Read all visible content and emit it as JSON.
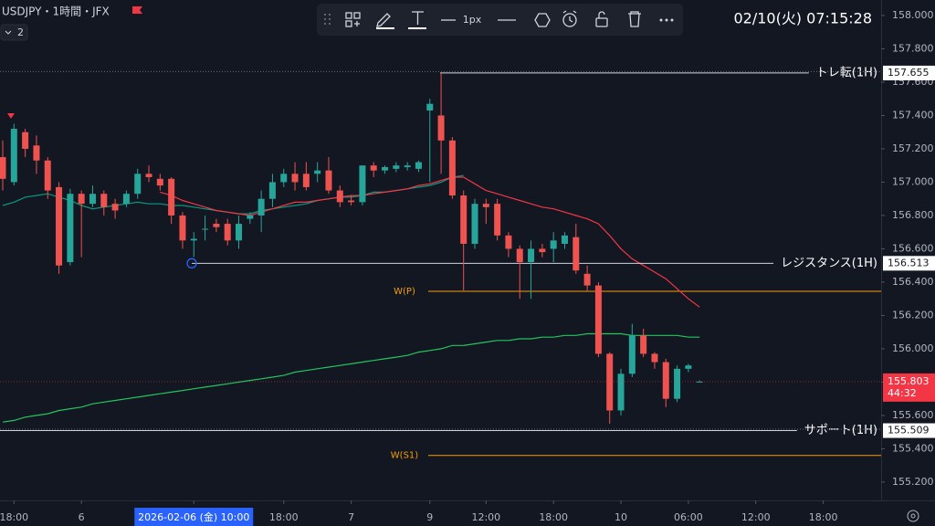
{
  "header": {
    "symbol": "USDJPY・1時間・JFX",
    "pane_count": 2,
    "stroke_width": "1px",
    "clock": "02/10(火)  07:15:28"
  },
  "chart_data": {
    "type": "candlestick",
    "up_color": "#26a69a",
    "down_color": "#ef5350",
    "xlim": [
      -0.244,
      78.15
    ],
    "xticks": [
      {
        "value": 1,
        "label": "18:00"
      },
      {
        "value": 7,
        "label": "6"
      },
      {
        "value": 17,
        "label": "2026-02-06 (金)   10:00"
      },
      {
        "value": 25,
        "label": "18:00"
      },
      {
        "value": 31,
        "label": "7"
      },
      {
        "value": 38,
        "label": "9"
      },
      {
        "value": 43,
        "label": "12:00"
      },
      {
        "value": 49,
        "label": "18:00"
      },
      {
        "value": 55,
        "label": "10"
      },
      {
        "value": 61,
        "label": "06:00"
      },
      {
        "value": 67,
        "label": "12:00"
      },
      {
        "value": 73,
        "label": "18:00"
      }
    ],
    "ylim": [
      155.09,
      158.093
    ],
    "yticks": [
      {
        "value": 158,
        "label": "158.000"
      },
      {
        "value": 157.8,
        "label": "157.800"
      },
      {
        "value": 157.6,
        "label": "157.600"
      },
      {
        "value": 157.4,
        "label": "157.400"
      },
      {
        "value": 157.2,
        "label": "157.200"
      },
      {
        "value": 157,
        "label": "157.000"
      },
      {
        "value": 156.8,
        "label": "156.800"
      },
      {
        "value": 156.6,
        "label": "156.600"
      },
      {
        "value": 156.4,
        "label": "156.400"
      },
      {
        "value": 156.2,
        "label": "156.200"
      },
      {
        "value": 156,
        "label": "156.000"
      },
      {
        "value": 155.8,
        "label": "155.800"
      },
      {
        "value": 155.6,
        "label": "155.600"
      },
      {
        "value": 155.4,
        "label": "155.400"
      },
      {
        "value": 155.2,
        "label": "155.200"
      }
    ],
    "open": [
      157.15,
      157.0,
      157.3,
      157.22,
      157.13,
      156.97,
      156.52,
      156.93,
      156.87,
      156.93,
      156.87,
      156.87,
      156.93,
      157.05,
      157.02,
      157.02,
      156.8,
      156.65,
      156.72,
      156.75,
      156.75,
      156.65,
      156.78,
      156.8,
      156.9,
      157.0,
      157.05,
      157.05,
      157.05,
      157.07,
      156.95,
      156.89,
      156.88,
      157.1,
      157.07,
      157.08,
      157.09,
      157.08,
      157.43,
      157.4,
      157.25,
      156.92,
      156.63,
      156.87,
      156.87,
      156.68,
      156.6,
      156.52,
      156.6,
      156.6,
      156.63,
      156.67,
      156.45,
      156.38,
      155.97,
      155.63,
      155.85,
      156.08,
      155.97,
      155.92,
      155.7,
      155.88,
      155.8
    ],
    "high": [
      157.25,
      157.35,
      157.32,
      157.28,
      157.15,
      157.0,
      156.96,
      156.95,
      156.98,
      156.95,
      156.9,
      156.95,
      157.08,
      157.1,
      157.05,
      157.03,
      156.82,
      156.7,
      156.8,
      156.78,
      156.78,
      156.8,
      156.82,
      156.95,
      157.05,
      157.08,
      157.12,
      157.12,
      157.12,
      157.15,
      156.98,
      156.92,
      157.1,
      157.12,
      157.1,
      157.12,
      157.12,
      157.13,
      157.5,
      157.655,
      157.27,
      156.95,
      156.9,
      156.9,
      156.9,
      156.7,
      156.62,
      156.65,
      156.63,
      156.7,
      156.7,
      156.75,
      156.5,
      156.4,
      155.98,
      155.88,
      156.15,
      156.12,
      155.98,
      155.94,
      155.9,
      155.91,
      155.81
    ],
    "low": [
      156.95,
      156.98,
      157.15,
      157.05,
      156.9,
      156.45,
      156.5,
      156.55,
      156.85,
      156.8,
      156.78,
      156.85,
      156.9,
      157.0,
      156.95,
      156.75,
      156.6,
      156.55,
      156.65,
      156.7,
      156.62,
      156.6,
      156.75,
      156.7,
      156.85,
      156.97,
      156.95,
      156.95,
      157.0,
      156.93,
      156.85,
      156.86,
      156.86,
      157.03,
      157.05,
      157.06,
      157.07,
      157.06,
      157.0,
      157.05,
      156.9,
      156.35,
      156.6,
      156.75,
      156.65,
      156.55,
      156.3,
      156.3,
      156.55,
      156.52,
      156.6,
      156.45,
      156.35,
      155.95,
      155.55,
      155.6,
      155.83,
      155.95,
      155.88,
      155.65,
      155.68,
      155.86,
      155.8
    ],
    "close": [
      157.02,
      157.32,
      157.2,
      157.13,
      156.95,
      156.5,
      156.93,
      156.87,
      156.93,
      156.85,
      156.83,
      156.93,
      157.05,
      157.03,
      156.98,
      156.8,
      156.65,
      156.66,
      156.72,
      156.73,
      156.65,
      156.75,
      156.8,
      156.9,
      157.0,
      157.05,
      157.0,
      156.97,
      157.07,
      156.95,
      156.88,
      156.88,
      157.1,
      157.07,
      157.09,
      157.1,
      157.1,
      157.12,
      157.47,
      157.25,
      156.92,
      156.63,
      156.87,
      156.85,
      156.68,
      156.6,
      156.52,
      156.6,
      156.58,
      156.65,
      156.68,
      156.47,
      156.38,
      155.97,
      155.63,
      155.85,
      156.08,
      155.97,
      155.92,
      155.7,
      155.88,
      155.9,
      155.803
    ],
    "series": [
      {
        "color": "#089981",
        "values": [
          156.86,
          156.88,
          156.91,
          156.92,
          156.93,
          156.91,
          156.89,
          156.86,
          156.84,
          156.85,
          156.86,
          156.87,
          156.88,
          156.87,
          156.87,
          156.86,
          156.86,
          156.85,
          156.84,
          156.83,
          156.82,
          156.81,
          156.81,
          156.83,
          156.84,
          156.85,
          156.86,
          156.87,
          156.89,
          156.9,
          156.91,
          156.91,
          156.92,
          156.94,
          156.94,
          156.95,
          156.96,
          156.97,
          156.98,
          157.0,
          157.03,
          157.04,
          null,
          null,
          null,
          null,
          null,
          null,
          null,
          null,
          null,
          null,
          null,
          null,
          null,
          null,
          null,
          null,
          null,
          null,
          null,
          null,
          null
        ]
      },
      {
        "color": "#f23645",
        "values": [
          null,
          null,
          null,
          null,
          null,
          null,
          null,
          null,
          null,
          null,
          null,
          null,
          null,
          null,
          156.94,
          156.92,
          156.89,
          156.87,
          156.85,
          156.83,
          156.82,
          156.81,
          156.8,
          156.82,
          156.84,
          156.86,
          156.88,
          156.88,
          156.89,
          156.9,
          156.91,
          156.92,
          156.92,
          156.93,
          156.94,
          156.95,
          156.96,
          156.98,
          156.99,
          157.01,
          157.03,
          157.03,
          156.99,
          156.95,
          156.93,
          156.91,
          156.89,
          156.87,
          156.85,
          156.84,
          156.82,
          156.8,
          156.78,
          156.75,
          156.68,
          156.6,
          156.54,
          156.5,
          156.46,
          156.42,
          156.36,
          156.3,
          156.25
        ]
      },
      {
        "color": "#22c55e",
        "values": [
          155.56,
          155.57,
          155.59,
          155.6,
          155.61,
          155.63,
          155.64,
          155.65,
          155.67,
          155.68,
          155.69,
          155.7,
          155.71,
          155.72,
          155.73,
          155.74,
          155.75,
          155.76,
          155.77,
          155.78,
          155.79,
          155.8,
          155.81,
          155.82,
          155.83,
          155.84,
          155.86,
          155.87,
          155.88,
          155.89,
          155.9,
          155.91,
          155.92,
          155.93,
          155.94,
          155.95,
          155.96,
          155.98,
          155.99,
          156.0,
          156.02,
          156.02,
          156.03,
          156.04,
          156.05,
          156.05,
          156.06,
          156.06,
          156.07,
          156.07,
          156.08,
          156.08,
          156.09,
          156.09,
          156.09,
          156.09,
          156.08,
          156.08,
          156.08,
          156.08,
          156.08,
          156.07,
          156.07
        ]
      }
    ],
    "levels": [
      {
        "label": "トレ転(1H)",
        "value": 157.655,
        "color": "#d1d4dc"
      },
      {
        "label": "レジスタンス(1H)",
        "value": 156.513,
        "color": "#d1d4dc"
      },
      {
        "label": "サポート(1H)",
        "value": 155.509,
        "color": "#d1d4dc"
      }
    ],
    "pivots": [
      {
        "label": "W(P)",
        "value": 156.345,
        "color": "#f59e0b"
      },
      {
        "label": "W(S1)",
        "value": 155.36,
        "color": "#f59e0b"
      }
    ],
    "last_price": 155.803,
    "last_color": "#f23645",
    "countdown": "44:32"
  }
}
